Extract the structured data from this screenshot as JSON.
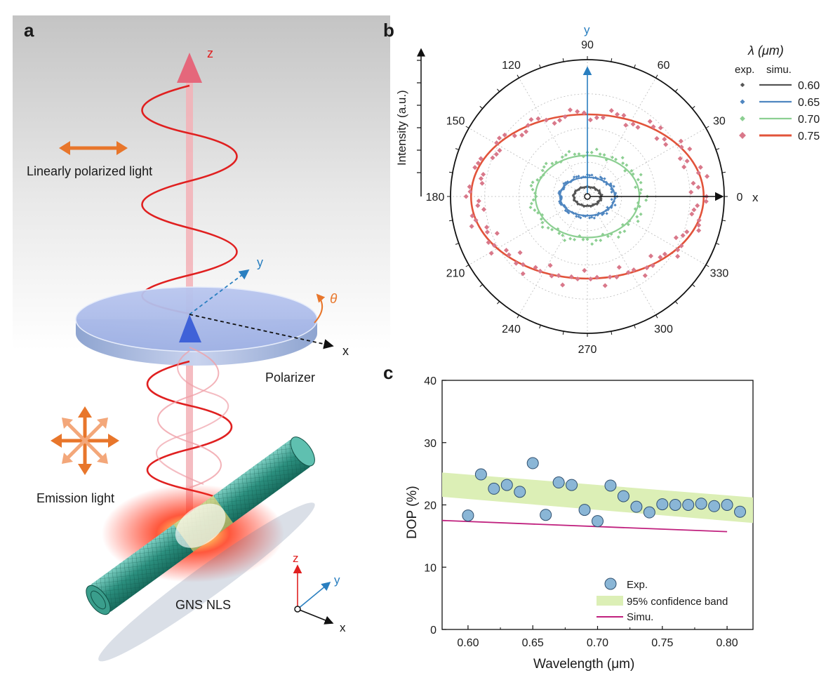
{
  "colors": {
    "red_wave": "#e02020",
    "blue_axis": "#2a7fc0",
    "orange": "#e8762b",
    "green_band": "#dcefb6",
    "magenta_simu": "#c0207e",
    "marker_blue": "#8ab6d6",
    "series_060": "#555555",
    "series_065": "#4f86c0",
    "series_070": "#8ccf92",
    "series_075": "#e2533a",
    "series_075_exp": "#d9788a"
  },
  "panel_a": {
    "letter": "a",
    "label_z": "z",
    "label_y": "y",
    "label_x": "x",
    "label_theta": "θ",
    "linearly_polarized": "Linearly polarized light",
    "polarizer": "Polarizer",
    "emission_light": "Emission light",
    "gns_nls": "GNS NLS",
    "small_axes": {
      "z": "z",
      "y": "y",
      "x": "x"
    }
  },
  "panel_b": {
    "letter": "b",
    "ylabel": "Intensity (a.u.)",
    "axis_y": "y",
    "axis_x": "x",
    "angle_labels": [
      "0",
      "30",
      "60",
      "90",
      "120",
      "150",
      "180",
      "210",
      "240",
      "270",
      "300",
      "330"
    ],
    "legend_title": "λ (μm)",
    "legend_col_exp": "exp.",
    "legend_col_simu": "simu.",
    "legend_entries": [
      "0.60",
      "0.65",
      "0.70",
      "0.75"
    ]
  },
  "panel_c": {
    "letter": "c",
    "xlabel": "Wavelength (μm)",
    "ylabel": "DOP (%)",
    "legend_exp": "Exp.",
    "legend_band": "95% confidence band",
    "legend_simu": "Simu."
  },
  "chart_data": [
    {
      "type": "scatter",
      "panel": "b",
      "polar": true,
      "angle_ticks_deg": [
        0,
        30,
        60,
        90,
        120,
        150,
        180,
        210,
        240,
        270,
        300,
        330
      ],
      "series": [
        {
          "name": "0.60",
          "simu_rx": 0.1,
          "simu_ry": 0.07,
          "exp_rx": 0.1,
          "exp_ry": 0.07
        },
        {
          "name": "0.65",
          "simu_rx": 0.2,
          "simu_ry": 0.14,
          "exp_rx": 0.2,
          "exp_ry": 0.15
        },
        {
          "name": "0.70",
          "simu_rx": 0.38,
          "simu_ry": 0.3,
          "exp_rx": 0.4,
          "exp_ry": 0.32
        },
        {
          "name": "0.75",
          "simu_rx": 0.85,
          "simu_ry": 0.6,
          "exp_rx": 0.83,
          "exp_ry": 0.6
        }
      ],
      "r_max": 1.0
    },
    {
      "type": "scatter",
      "panel": "c",
      "title": "",
      "xlabel": "Wavelength (μm)",
      "ylabel": "DOP (%)",
      "xlim": [
        0.58,
        0.82
      ],
      "ylim": [
        0,
        40
      ],
      "xticks": [
        "0.60",
        "0.65",
        "0.70",
        "0.75",
        "0.80"
      ],
      "yticks": [
        "0",
        "10",
        "20",
        "30",
        "40"
      ],
      "series": [
        {
          "name": "Exp.",
          "x": [
            0.6,
            0.61,
            0.62,
            0.63,
            0.64,
            0.65,
            0.66,
            0.67,
            0.68,
            0.69,
            0.7,
            0.71,
            0.72,
            0.73,
            0.74,
            0.75,
            0.76,
            0.77,
            0.78,
            0.79,
            0.8,
            0.81
          ],
          "y": [
            18.3,
            24.9,
            22.6,
            23.2,
            22.1,
            26.7,
            18.4,
            23.6,
            23.2,
            19.2,
            17.4,
            23.1,
            21.4,
            19.7,
            18.8,
            20.1,
            20.0,
            20.0,
            20.2,
            19.8,
            20.0,
            18.9
          ]
        },
        {
          "name": "95% confidence band",
          "x": [
            0.58,
            0.82
          ],
          "upper": [
            25.2,
            21.2
          ],
          "lower": [
            21.3,
            17.1
          ]
        },
        {
          "name": "Simu.",
          "x": [
            0.58,
            0.8
          ],
          "y": [
            17.5,
            15.7
          ]
        }
      ]
    }
  ]
}
